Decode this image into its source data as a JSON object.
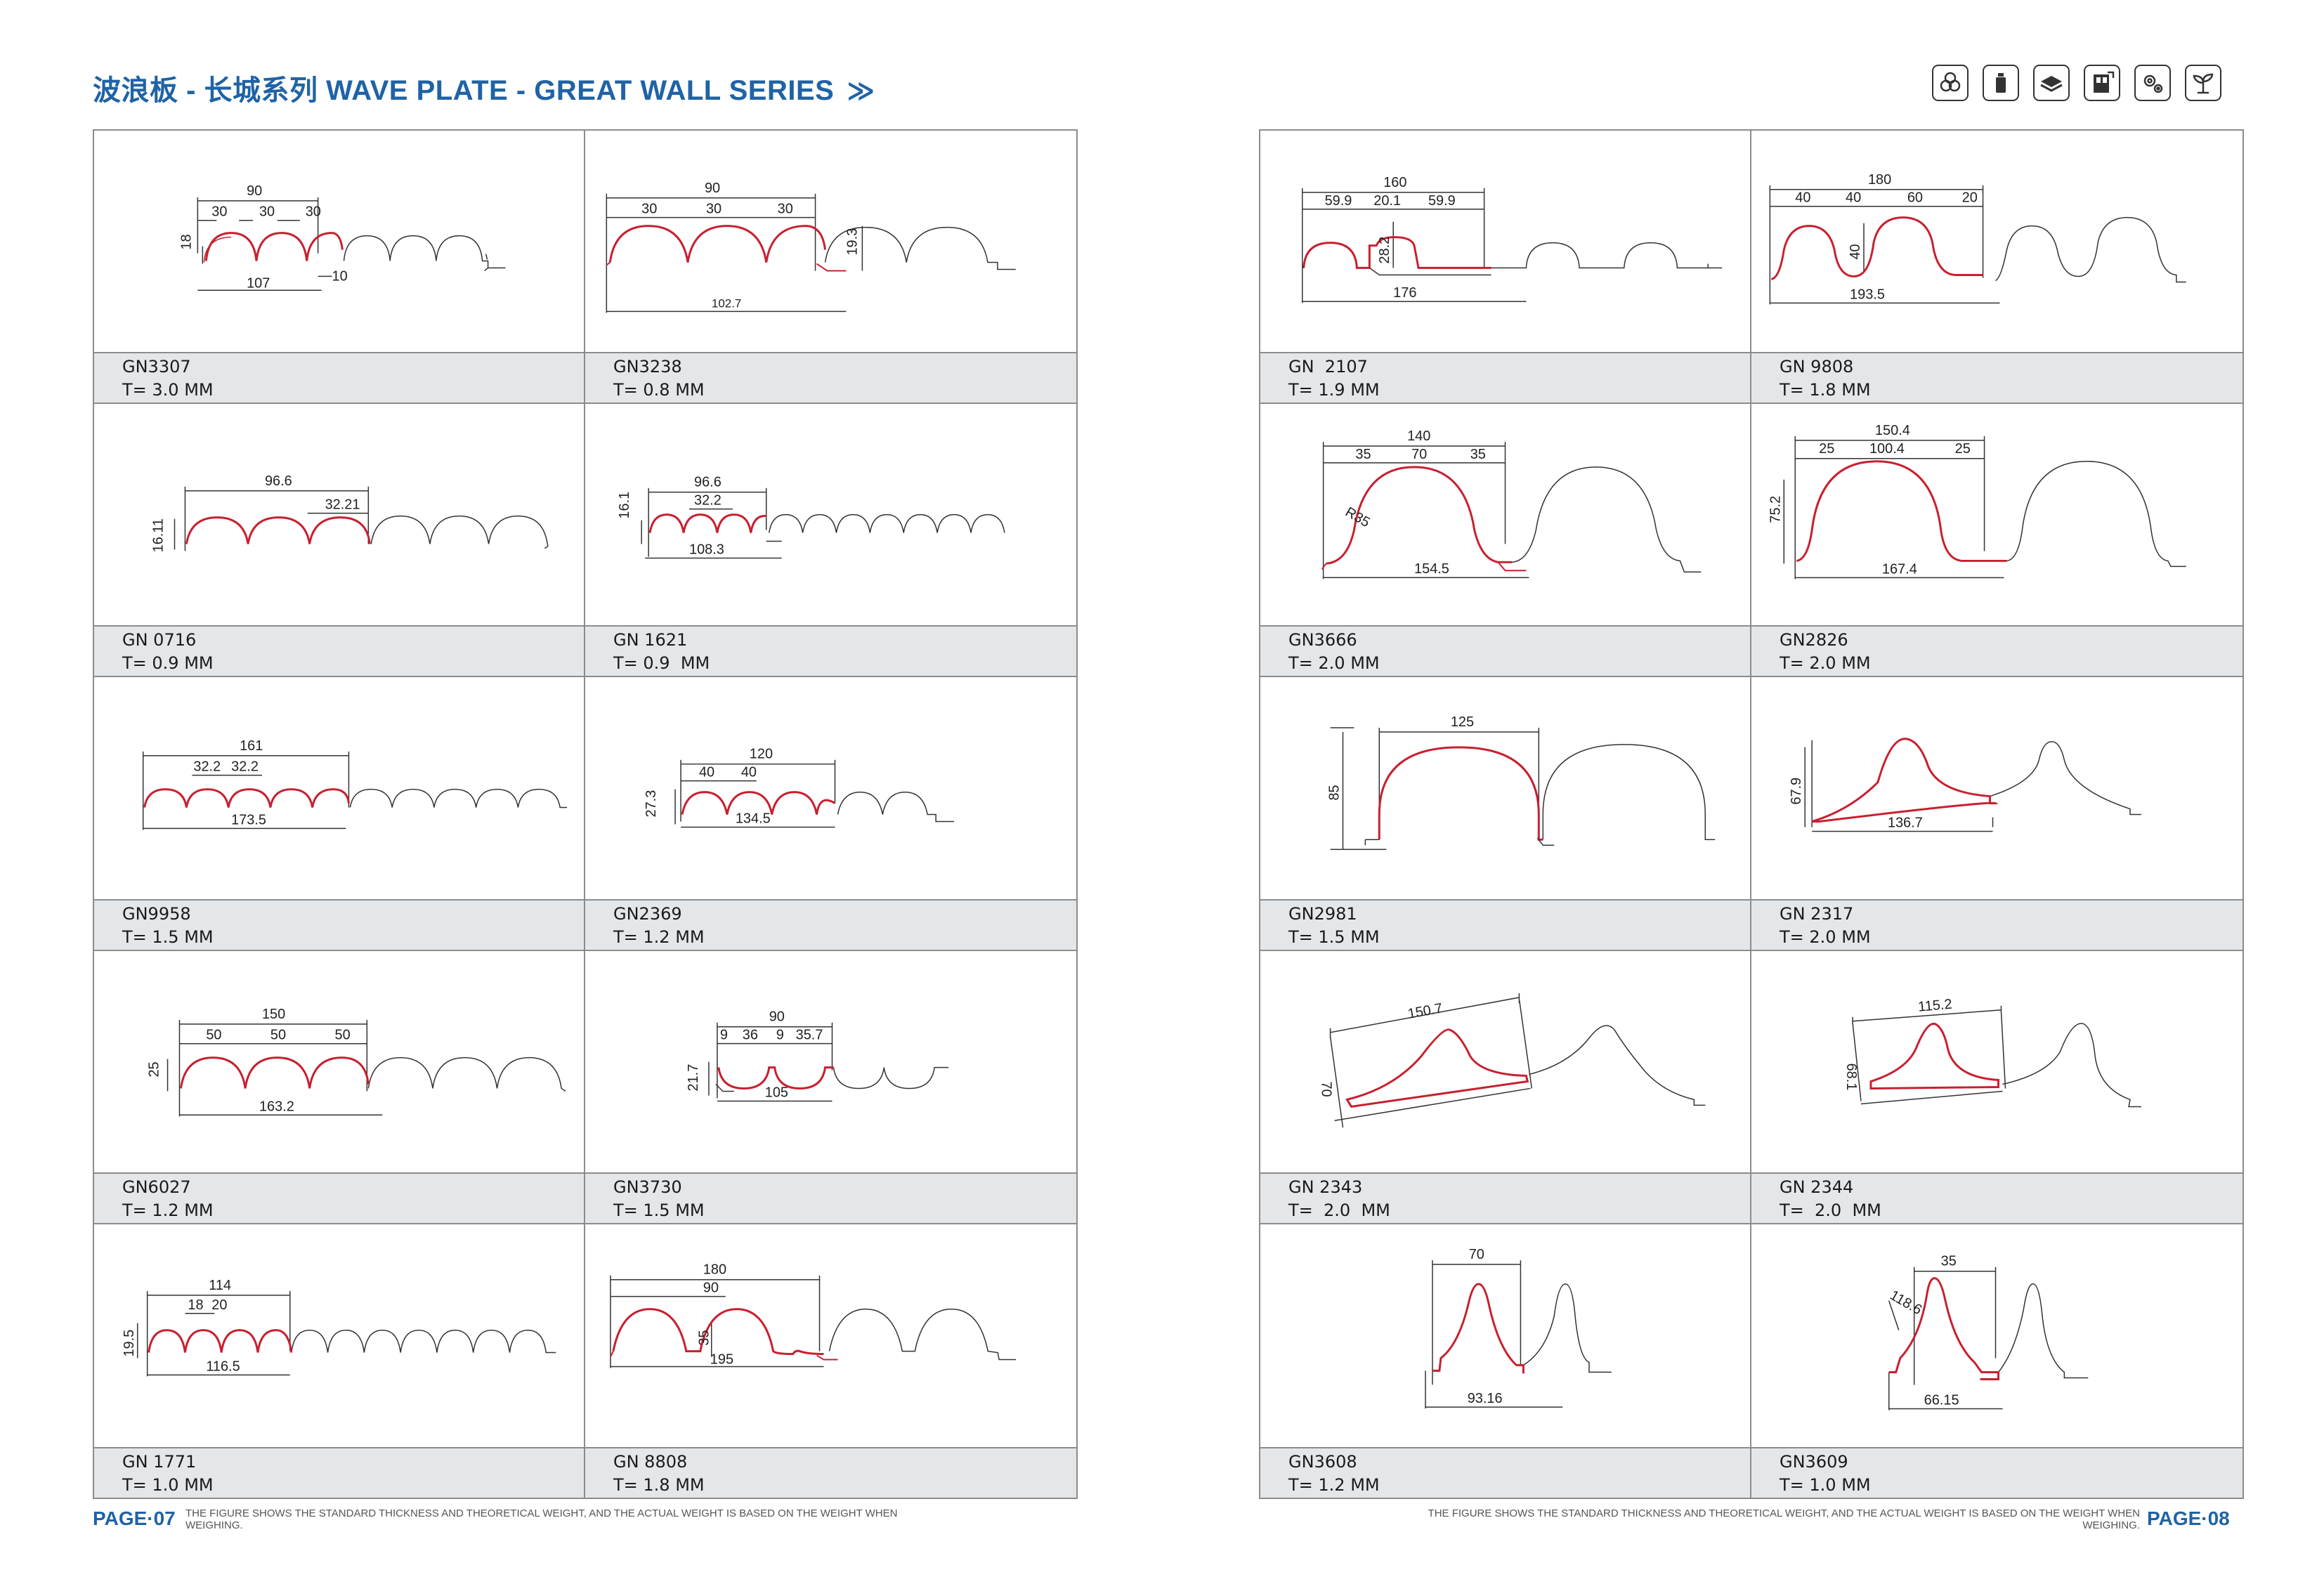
{
  "header": {
    "title": "波浪板 - 长城系列 WAVE PLATE - GREAT WALL SERIES",
    "chevron": "≫",
    "icons": [
      "pipes-icon",
      "bottle-icon",
      "stacked-boards-icon",
      "door-icon",
      "gears-icon",
      "sprout-icon"
    ]
  },
  "colors": {
    "accent": "#1f63a6",
    "profile_red": "#c8202f",
    "profile_dark": "#333333",
    "caption_bg": "#e4e7ea"
  },
  "left_page": {
    "products": [
      {
        "code": "GN3307",
        "thickness": "T= 3.0 MM",
        "dims": [
          "90",
          "30",
          "30",
          "30",
          "18",
          "107",
          "10"
        ]
      },
      {
        "code": "GN3238",
        "thickness": "T= 0.8 MM",
        "dims": [
          "90",
          "30",
          "30",
          "30",
          "19.3",
          "102.7"
        ]
      },
      {
        "code": "GN 0716",
        "thickness": "T= 0.9 MM",
        "dims": [
          "96.6",
          "32.21",
          "16.11"
        ]
      },
      {
        "code": "GN 1621",
        "thickness": "T= 0.9  MM",
        "dims": [
          "96.6",
          "32.2",
          "16.1",
          "108.3"
        ]
      },
      {
        "code": "GN9958",
        "thickness": "T= 1.5 MM",
        "dims": [
          "161",
          "32.2",
          "32.2",
          "173.5"
        ]
      },
      {
        "code": "GN2369",
        "thickness": "T= 1.2 MM",
        "dims": [
          "120",
          "40",
          "40",
          "27.3",
          "134.5"
        ]
      },
      {
        "code": "GN6027",
        "thickness": "T= 1.2 MM",
        "dims": [
          "150",
          "50",
          "50",
          "50",
          "25",
          "163.2"
        ]
      },
      {
        "code": "GN3730",
        "thickness": "T= 1.5 MM",
        "dims": [
          "90",
          "9",
          "36",
          "9",
          "35.7",
          "21.7",
          "105"
        ]
      },
      {
        "code": "GN 1771",
        "thickness": "T= 1.0 MM",
        "dims": [
          "114",
          "18",
          "20",
          "19.5",
          "116.5"
        ]
      },
      {
        "code": "GN 8808",
        "thickness": "T= 1.8 MM",
        "dims": [
          "180",
          "90",
          "35",
          "195"
        ]
      }
    ],
    "page_number": "PAGE·07",
    "note": "THE FIGURE SHOWS THE STANDARD THICKNESS AND THEORETICAL WEIGHT, AND THE ACTUAL WEIGHT IS BASED ON THE WEIGHT WHEN WEIGHING."
  },
  "right_page": {
    "products": [
      {
        "code": "GN  2107",
        "thickness": "T= 1.9 MM",
        "dims": [
          "160",
          "59.9",
          "20.1",
          "59.9",
          "28.2",
          "176"
        ]
      },
      {
        "code": "GN 9808",
        "thickness": "T= 1.8 MM",
        "dims": [
          "180",
          "40",
          "40",
          "60",
          "20",
          "40",
          "193.5"
        ]
      },
      {
        "code": "GN3666",
        "thickness": "T= 2.0 MM",
        "dims": [
          "140",
          "35",
          "70",
          "35",
          "R35",
          "154.5"
        ]
      },
      {
        "code": "GN2826",
        "thickness": "T= 2.0 MM",
        "dims": [
          "150.4",
          "25",
          "100.4",
          "25",
          "75.2",
          "167.4"
        ]
      },
      {
        "code": "GN2981",
        "thickness": "T= 1.5 MM",
        "dims": [
          "125",
          "85"
        ]
      },
      {
        "code": "GN 2317",
        "thickness": "T= 2.0 MM",
        "dims": [
          "67.9",
          "136.7"
        ]
      },
      {
        "code": "GN 2343",
        "thickness": "T=  2.0  MM",
        "dims": [
          "150.7",
          "70"
        ]
      },
      {
        "code": "GN 2344",
        "thickness": "T=  2.0  MM",
        "dims": [
          "115.2",
          "68.1"
        ]
      },
      {
        "code": "GN3608",
        "thickness": "T= 1.2 MM",
        "dims": [
          "70",
          "93.16"
        ]
      },
      {
        "code": "GN3609",
        "thickness": "T= 1.0 MM",
        "dims": [
          "35",
          "118.6",
          "66.15"
        ]
      }
    ],
    "page_number": "PAGE·08",
    "note": "THE FIGURE SHOWS THE STANDARD THICKNESS AND THEORETICAL WEIGHT, AND THE ACTUAL WEIGHT IS BASED ON THE WEIGHT WHEN WEIGHING."
  }
}
